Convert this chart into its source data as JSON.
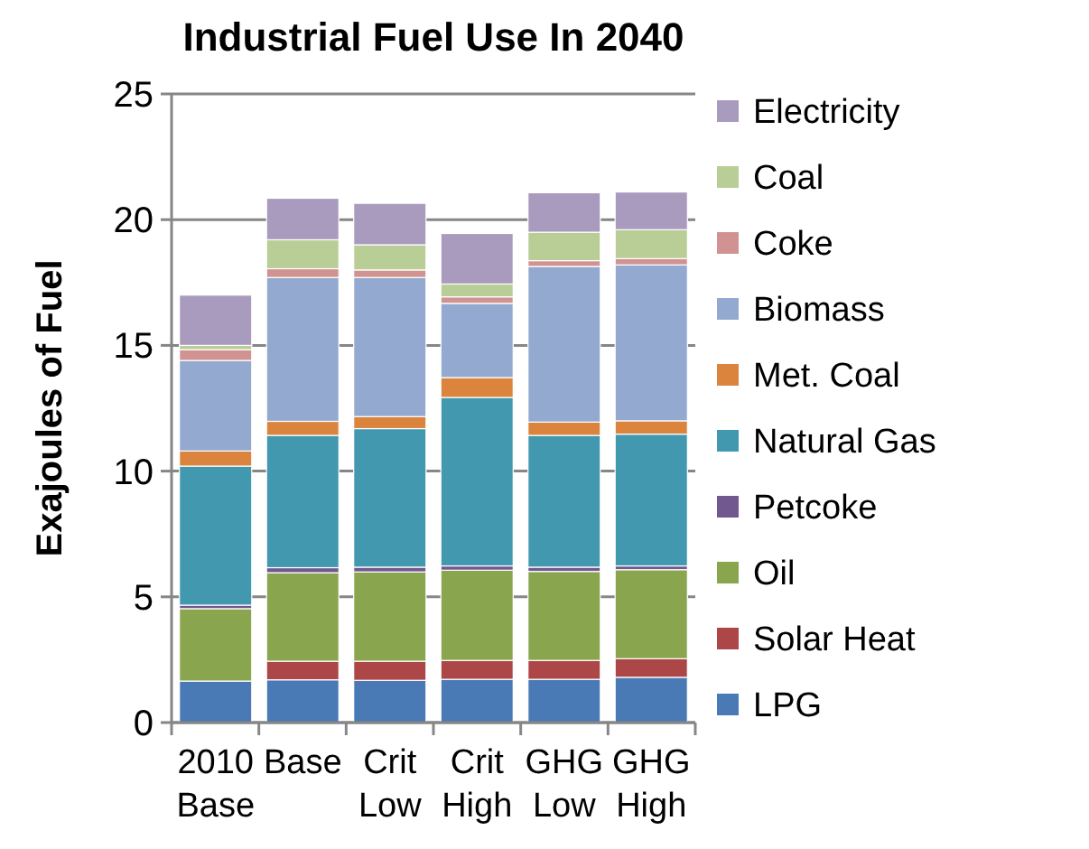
{
  "chart_data": {
    "type": "bar",
    "title": "Industrial Fuel Use In 2040",
    "ylabel": "Exajoules of Fuel",
    "categories": [
      "2010 Base",
      "Base",
      "Crit Low",
      "Crit High",
      "GHG Low",
      "GHG High"
    ],
    "stacked": true,
    "ylim": [
      0,
      25
    ],
    "yticks": [
      0,
      5,
      10,
      15,
      20,
      25
    ],
    "grid": "y",
    "legend": "right",
    "series": [
      {
        "name": "LPG",
        "color": "#4a7ab5",
        "values": [
          1.65,
          1.7,
          1.68,
          1.72,
          1.72,
          1.8
        ]
      },
      {
        "name": "Solar Heat",
        "color": "#ad4646",
        "values": [
          0,
          0.74,
          0.76,
          0.75,
          0.75,
          0.74
        ]
      },
      {
        "name": "Oil",
        "color": "#89a54e",
        "values": [
          2.88,
          3.52,
          3.55,
          3.59,
          3.54,
          3.54
        ]
      },
      {
        "name": "Petcoke",
        "color": "#71588f",
        "values": [
          0.14,
          0.2,
          0.19,
          0.17,
          0.17,
          0.15
        ]
      },
      {
        "name": "Natural Gas",
        "color": "#4198af",
        "values": [
          5.53,
          5.26,
          5.51,
          6.7,
          5.24,
          5.24
        ]
      },
      {
        "name": "Met. Coal",
        "color": "#db843d",
        "values": [
          0.6,
          0.56,
          0.48,
          0.79,
          0.53,
          0.53
        ]
      },
      {
        "name": "Biomass",
        "color": "#93a9cf",
        "values": [
          3.6,
          5.72,
          5.53,
          2.95,
          6.19,
          6.2
        ]
      },
      {
        "name": "Coke",
        "color": "#d19392",
        "values": [
          0.43,
          0.35,
          0.3,
          0.26,
          0.23,
          0.25
        ]
      },
      {
        "name": "Coal",
        "color": "#b9cd96",
        "values": [
          0.17,
          1.15,
          1.0,
          0.51,
          1.13,
          1.15
        ]
      },
      {
        "name": "Electricity",
        "color": "#a99bbd",
        "values": [
          2.0,
          1.65,
          1.65,
          2.01,
          1.57,
          1.5
        ]
      }
    ]
  }
}
